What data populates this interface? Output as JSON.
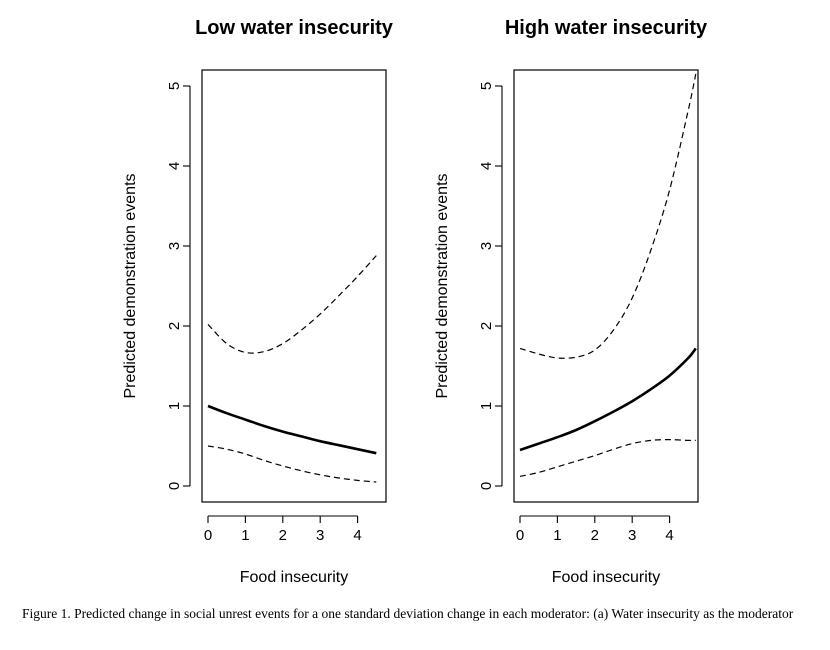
{
  "chart_data": [
    {
      "type": "line",
      "title": "Low water insecurity",
      "xlabel": "Food insecurity",
      "ylabel": "Predicted demonstration events",
      "xlim": [
        0,
        4.6
      ],
      "ylim": [
        0,
        5
      ],
      "xticks": [
        "0",
        "1",
        "2",
        "3",
        "4"
      ],
      "yticks": [
        "0",
        "1",
        "2",
        "3",
        "4",
        "5"
      ],
      "grid": false,
      "series": [
        {
          "role": "estimate",
          "style": "solid",
          "x": [
            0,
            0.5,
            1,
            1.5,
            2,
            2.5,
            3,
            3.5,
            4,
            4.5
          ],
          "y": [
            1.0,
            0.91,
            0.83,
            0.75,
            0.68,
            0.62,
            0.56,
            0.51,
            0.46,
            0.41
          ]
        },
        {
          "role": "upper",
          "style": "dashed",
          "x": [
            0,
            0.5,
            1,
            1.5,
            2,
            2.5,
            3,
            3.5,
            4,
            4.5
          ],
          "y": [
            2.02,
            1.78,
            1.67,
            1.68,
            1.78,
            1.95,
            2.15,
            2.38,
            2.62,
            2.88
          ]
        },
        {
          "role": "lower",
          "style": "dashed",
          "x": [
            0,
            0.5,
            1,
            1.5,
            2,
            2.5,
            3,
            3.5,
            4,
            4.5
          ],
          "y": [
            0.5,
            0.46,
            0.4,
            0.32,
            0.25,
            0.19,
            0.14,
            0.1,
            0.07,
            0.05
          ]
        }
      ]
    },
    {
      "type": "line",
      "title": "High water insecurity",
      "xlabel": "Food insecurity",
      "ylabel": "Predicted demonstration events",
      "xlim": [
        0,
        4.6
      ],
      "ylim": [
        0,
        5
      ],
      "xticks": [
        "0",
        "1",
        "2",
        "3",
        "4"
      ],
      "yticks": [
        "0",
        "1",
        "2",
        "3",
        "4",
        "5"
      ],
      "grid": false,
      "series": [
        {
          "role": "estimate",
          "style": "solid",
          "x": [
            0,
            0.5,
            1,
            1.5,
            2,
            2.5,
            3,
            3.5,
            4,
            4.5,
            4.7
          ],
          "y": [
            0.45,
            0.53,
            0.61,
            0.7,
            0.81,
            0.93,
            1.06,
            1.21,
            1.38,
            1.6,
            1.72
          ]
        },
        {
          "role": "upper",
          "style": "dashed",
          "x": [
            0,
            0.5,
            1,
            1.5,
            2,
            2.5,
            3,
            3.5,
            4,
            4.5,
            4.7
          ],
          "y": [
            1.72,
            1.65,
            1.6,
            1.61,
            1.7,
            1.95,
            2.35,
            2.95,
            3.7,
            4.7,
            5.15
          ]
        },
        {
          "role": "lower",
          "style": "dashed",
          "x": [
            0,
            0.5,
            1,
            1.5,
            2,
            2.5,
            3,
            3.5,
            4,
            4.5,
            4.7
          ],
          "y": [
            0.12,
            0.17,
            0.24,
            0.31,
            0.38,
            0.46,
            0.53,
            0.57,
            0.58,
            0.57,
            0.57
          ]
        }
      ]
    }
  ],
  "caption": "Figure 1. Predicted change in social unrest events for a one standard deviation change in each moderator: (a) Water insecurity as the moderator"
}
